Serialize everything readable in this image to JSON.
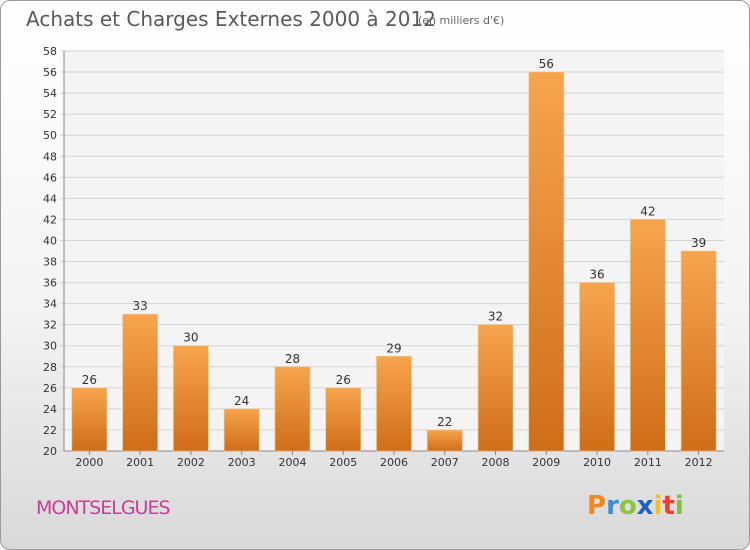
{
  "chart_data": {
    "type": "bar",
    "title": "Achats et Charges Externes 2000 à 2012",
    "subtitle": "(en milliers d'€)",
    "categories": [
      "2000",
      "2001",
      "2002",
      "2003",
      "2004",
      "2005",
      "2006",
      "2007",
      "2008",
      "2009",
      "2010",
      "2011",
      "2012"
    ],
    "values": [
      26,
      33,
      30,
      24,
      28,
      26,
      29,
      22,
      32,
      56,
      36,
      42,
      39
    ],
    "ylim": [
      20,
      58
    ],
    "yticks": [
      20,
      22,
      24,
      26,
      28,
      30,
      32,
      34,
      36,
      38,
      40,
      42,
      44,
      46,
      48,
      50,
      52,
      54,
      56,
      58
    ],
    "grid": true,
    "bar_color_top": "#f7a54e",
    "bar_color_bottom": "#d06d18"
  },
  "footer": {
    "commune": "MONTSELGUES",
    "logo": {
      "letters": [
        "P",
        "r",
        "o",
        "x",
        "i",
        "t",
        "i"
      ],
      "colors": [
        "#f08a1e",
        "#3a8fd8",
        "#8cc63f",
        "#1f5fbf",
        "#f3c11b",
        "#e8402f",
        "#7fbf3f"
      ]
    }
  }
}
